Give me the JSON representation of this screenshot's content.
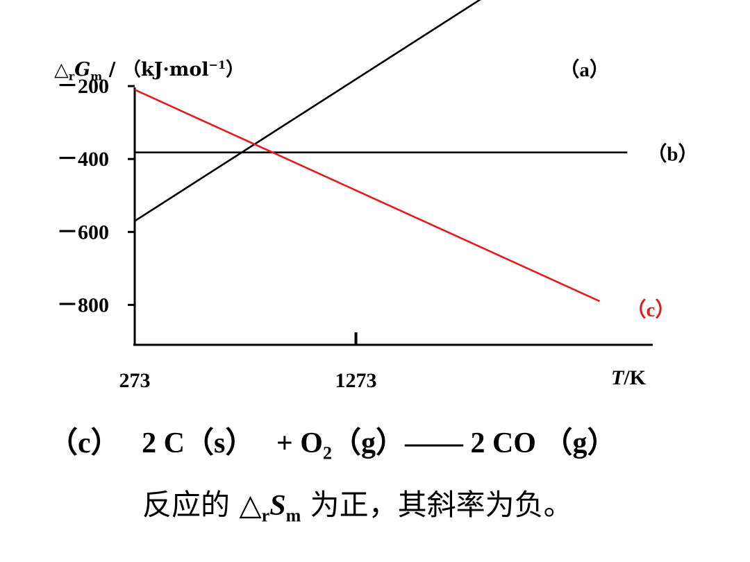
{
  "chart_data": {
    "type": "line",
    "y_axis": {
      "label_parts": {
        "delta": "△",
        "sub_r": "r",
        "symbol": "G",
        "sub_m": "m",
        "slash_unit": " / （kJ·mol",
        "exp": "−1",
        "close": "）"
      },
      "ticks": [
        -200,
        -400,
        -600,
        -800
      ],
      "tick_labels": [
        "－200",
        "－400",
        "－600",
        "－800"
      ],
      "ylim": [
        -980,
        -40
      ]
    },
    "x_axis": {
      "ticks": [
        273,
        1273
      ],
      "tick_labels": [
        "273",
        "1273"
      ],
      "unit_symbol": "T",
      "unit_rest": "/K",
      "xlim": [
        273,
        2615
      ]
    },
    "series": [
      {
        "name": "（a）",
        "color": "#000000",
        "x": [
          273,
          2073
        ],
        "y": [
          -570,
          130
        ]
      },
      {
        "name": "（b）",
        "color": "#000000",
        "x": [
          273,
          2500
        ],
        "y": [
          -382,
          -382
        ]
      },
      {
        "name": "（c）",
        "color": "#e31b1b",
        "x": [
          273,
          2375
        ],
        "y": [
          -210,
          -790
        ]
      }
    ]
  },
  "equation": {
    "label": "（c）",
    "term1": "2 C（s）",
    "plus_o": "+ O",
    "o_sub": "2",
    "term2": "（g）—— 2 CO （g）"
  },
  "sentence": {
    "prefix": "反应的 △",
    "sub_r": "r",
    "symbol": "S",
    "sub_m": "m",
    "suffix": " 为正，其斜率为负。"
  }
}
